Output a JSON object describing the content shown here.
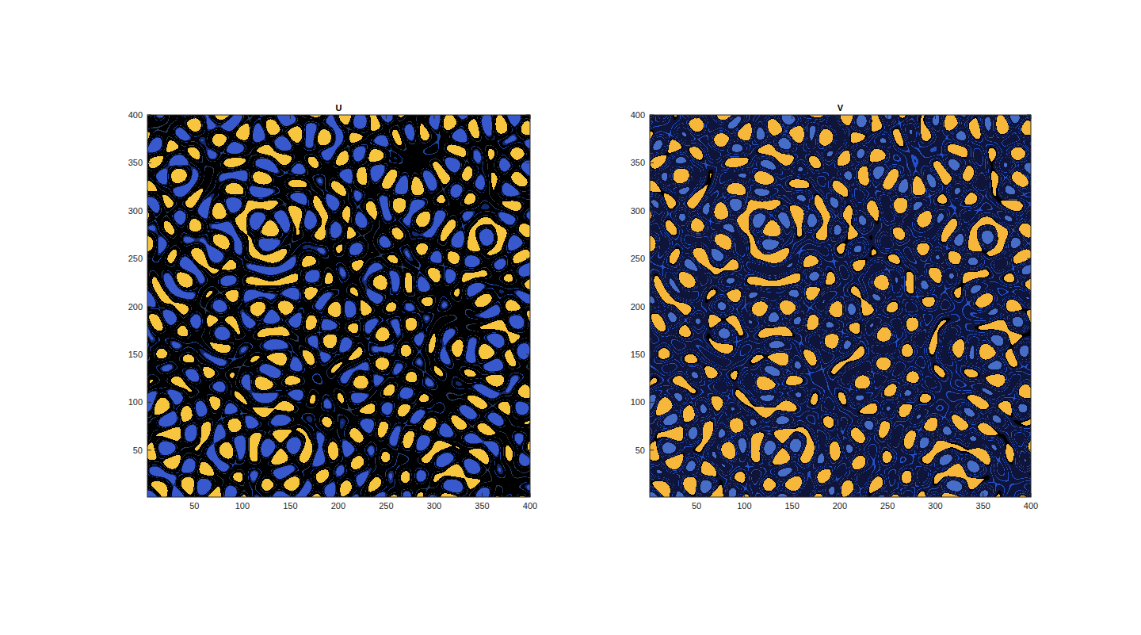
{
  "chart_data": [
    {
      "type": "contour",
      "title": "U",
      "xlim": [
        1,
        400
      ],
      "ylim": [
        1,
        400
      ],
      "xticks": [
        50,
        100,
        150,
        200,
        250,
        300,
        350,
        400
      ],
      "yticks": [
        50,
        100,
        150,
        200,
        250,
        300,
        350,
        400
      ]
    },
    {
      "type": "contour",
      "title": "V",
      "xlim": [
        1,
        400
      ],
      "ylim": [
        1,
        400
      ],
      "xticks": [
        50,
        100,
        150,
        200,
        250,
        300,
        350,
        400
      ],
      "yticks": [
        50,
        100,
        150,
        200,
        250,
        300,
        350,
        400
      ]
    }
  ]
}
